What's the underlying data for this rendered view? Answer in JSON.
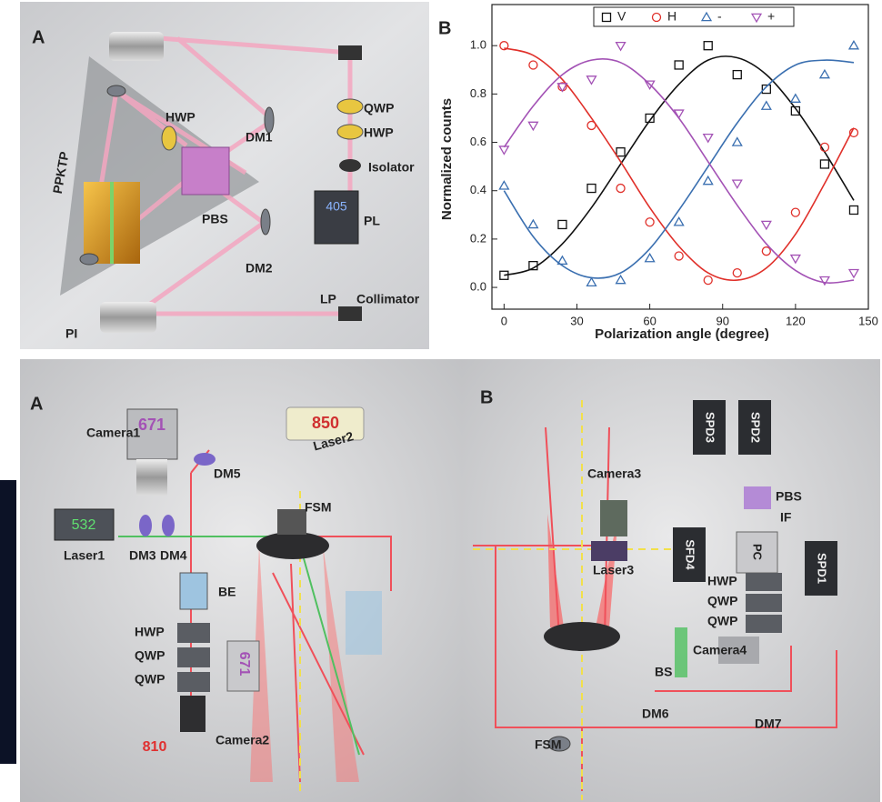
{
  "top_left": {
    "panel": "A",
    "labels": [
      "HWP",
      "QWP",
      "HWP",
      "DM1",
      "Isolator",
      "PPKTP",
      "PBS",
      "405",
      "PL",
      "DM2",
      "LP",
      "Collimator",
      "PI"
    ]
  },
  "chart_data": {
    "type": "scatter",
    "panel": "B",
    "x": [
      0,
      12,
      24,
      36,
      48,
      60,
      72,
      84,
      96,
      108,
      120,
      132,
      144
    ],
    "fit_x": [
      0,
      12,
      24,
      36,
      48,
      60,
      72,
      84,
      96,
      108,
      120,
      132,
      144
    ],
    "series": [
      {
        "name": "V",
        "color": "#111111",
        "marker": "square",
        "values": [
          0.05,
          0.09,
          0.26,
          0.41,
          0.56,
          0.7,
          0.92,
          1.0,
          0.88,
          0.82,
          0.73,
          0.51,
          0.32
        ],
        "fit_values": [
          0.05,
          0.08,
          0.18,
          0.33,
          0.51,
          0.69,
          0.84,
          0.94,
          0.95,
          0.88,
          0.74,
          0.56,
          0.36
        ]
      },
      {
        "name": "H",
        "color": "#e0302a",
        "marker": "circle",
        "values": [
          1.0,
          0.92,
          0.83,
          0.67,
          0.41,
          0.27,
          0.13,
          0.03,
          0.06,
          0.15,
          0.31,
          0.58,
          0.64
        ],
        "fit_values": [
          0.99,
          0.96,
          0.86,
          0.7,
          0.52,
          0.33,
          0.17,
          0.06,
          0.03,
          0.08,
          0.22,
          0.43,
          0.66
        ]
      },
      {
        "name": "-",
        "color": "#3a6fb0",
        "marker": "triangle-up",
        "values": [
          0.42,
          0.26,
          0.11,
          0.02,
          0.03,
          0.12,
          0.27,
          0.44,
          0.6,
          0.75,
          0.78,
          0.88,
          1.0
        ],
        "fit_values": [
          0.4,
          0.21,
          0.09,
          0.04,
          0.06,
          0.16,
          0.32,
          0.5,
          0.68,
          0.83,
          0.92,
          0.94,
          0.93
        ]
      },
      {
        "name": "+",
        "color": "#a352b5",
        "marker": "triangle-down",
        "values": [
          0.57,
          0.67,
          0.83,
          0.86,
          1.0,
          0.84,
          0.72,
          0.62,
          0.43,
          0.26,
          0.12,
          0.03,
          0.06
        ],
        "fit_values": [
          0.58,
          0.75,
          0.88,
          0.94,
          0.93,
          0.84,
          0.7,
          0.52,
          0.34,
          0.18,
          0.07,
          0.02,
          0.03
        ]
      }
    ],
    "x_label": "Polarization angle (degree)",
    "y_label": "Normalized counts",
    "xlim": [
      -5,
      150
    ],
    "xticks": [
      0,
      30,
      60,
      90,
      120,
      150
    ],
    "ylim": [
      -0.09,
      1.17
    ],
    "yticks": [
      {
        "value": 0,
        "label": "0.0"
      },
      {
        "value": 0.2,
        "label": "0.2"
      },
      {
        "value": 0.4,
        "label": "0.4"
      },
      {
        "value": 0.6,
        "label": "0.6"
      },
      {
        "value": 0.8,
        "label": "0.8"
      },
      {
        "value": 1.0,
        "label": "1.0"
      }
    ],
    "legend": "top"
  },
  "bottom_left": {
    "panel": "A",
    "labels": [
      "Camera1",
      "671",
      "850",
      "Laser2",
      "DM5",
      "FSM",
      "532",
      "Laser1",
      "DM3",
      "DM4",
      "BE",
      "HWP",
      "QWP",
      "QWP",
      "810",
      "671",
      "Camera2"
    ]
  },
  "bottom_right": {
    "panel": "B",
    "labels": [
      "SPD3",
      "SPD2",
      "Camera3",
      "PBS",
      "IF",
      "Laser3",
      "SFD4",
      "PC",
      "SPD1",
      "HWP",
      "QWP",
      "QWP",
      "Camera4",
      "BS",
      "DM6",
      "DM7",
      "FSM"
    ]
  }
}
